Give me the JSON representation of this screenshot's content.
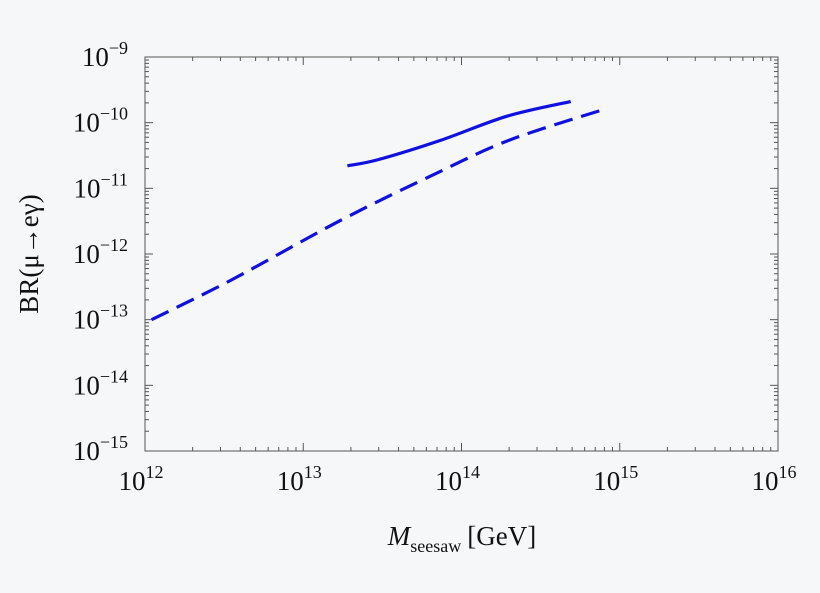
{
  "chart_data": {
    "type": "line",
    "title": "",
    "xlabel_main": "M",
    "xlabel_sub": "seesaw",
    "xlabel_unit": "[GeV]",
    "ylabel": "BR(μ→eγ)",
    "xscale": "log",
    "yscale": "log",
    "xlim": [
      1000000000000.0,
      1e+16
    ],
    "ylim": [
      1e-15,
      1e-09
    ],
    "x_ticks": [
      {
        "base": "10",
        "exp": "12",
        "value": 1000000000000.0
      },
      {
        "base": "10",
        "exp": "13",
        "value": 10000000000000.0
      },
      {
        "base": "10",
        "exp": "14",
        "value": 100000000000000.0
      },
      {
        "base": "10",
        "exp": "15",
        "value": 1000000000000000.0
      },
      {
        "base": "10",
        "exp": "16",
        "value": 1e+16
      }
    ],
    "y_ticks": [
      {
        "base": "10",
        "exp": "−15",
        "value": 1e-15
      },
      {
        "base": "10",
        "exp": "−14",
        "value": 1e-14
      },
      {
        "base": "10",
        "exp": "−13",
        "value": 1e-13
      },
      {
        "base": "10",
        "exp": "−12",
        "value": 1e-12
      },
      {
        "base": "10",
        "exp": "−11",
        "value": 1e-11
      },
      {
        "base": "10",
        "exp": "−10",
        "value": 1e-10
      },
      {
        "base": "10",
        "exp": "−9",
        "value": 1e-09
      }
    ],
    "grid": false,
    "series": [
      {
        "style": "solid",
        "color": "#1010e0",
        "x": [
          19000000000000.0,
          30000000000000.0,
          74000000000000.0,
          195000000000000.0,
          490000000000000.0
        ],
        "y": [
          2.2e-11,
          2.75e-11,
          5.4e-11,
          1.26e-10,
          2.1e-10
        ]
      },
      {
        "style": "dashed",
        "color": "#1010e0",
        "x": [
          1100000000000.0,
          3500000000000.0,
          17000000000000.0,
          66000000000000.0,
          200000000000000.0,
          800000000000000.0
        ],
        "y": [
          1e-13,
          4e-13,
          3.2e-12,
          1.6e-11,
          5.4e-11,
          1.6e-10
        ]
      }
    ]
  }
}
